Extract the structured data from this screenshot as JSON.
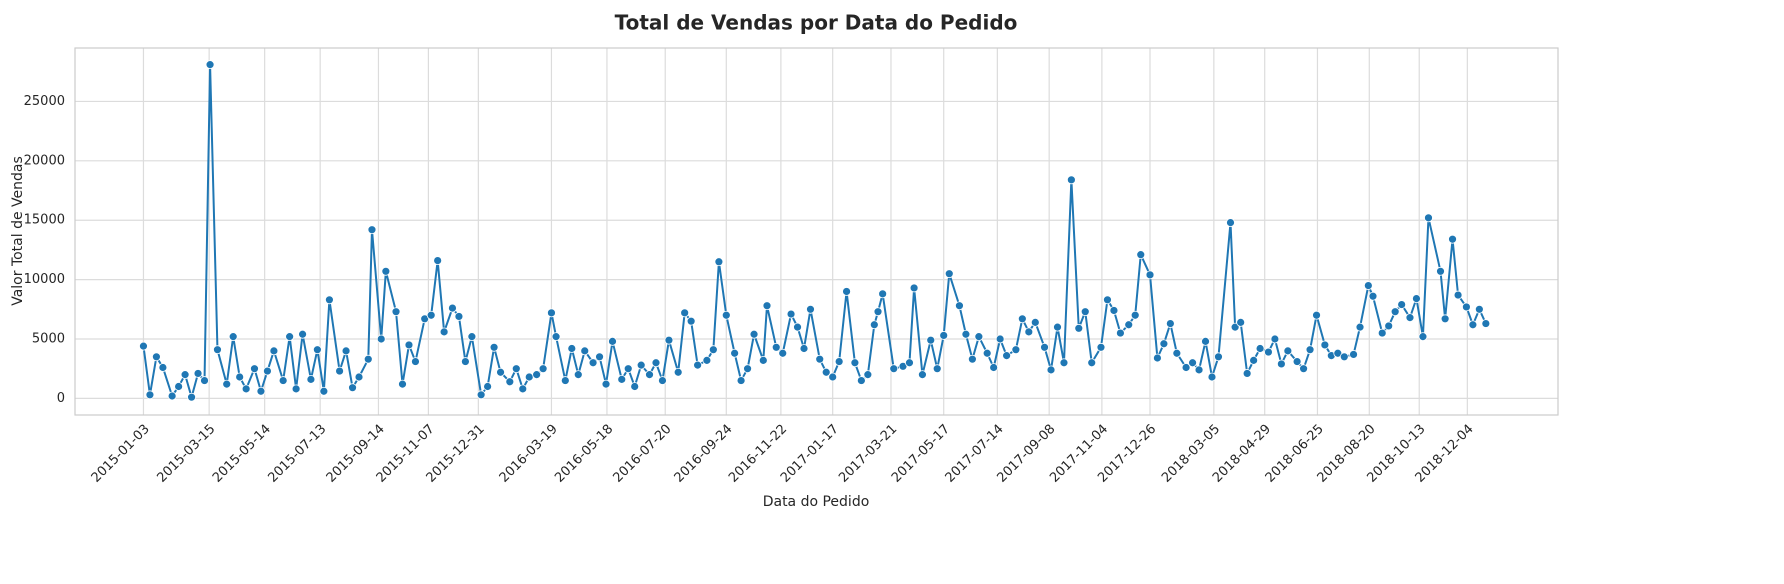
{
  "chart_data": {
    "type": "line",
    "title": "Total de Vendas por Data do Pedido",
    "x_label": "Data do Pedido",
    "y_label": "Valor Total de Vendas",
    "color": "#1f77b4",
    "grid": true,
    "x": [
      "2015-01-03",
      "2015-01-10",
      "2015-01-17",
      "2015-01-24",
      "2015-02-03",
      "2015-02-10",
      "2015-02-17",
      "2015-02-24",
      "2015-03-03",
      "2015-03-10",
      "2015-03-16",
      "2015-03-24",
      "2015-04-03",
      "2015-04-10",
      "2015-04-17",
      "2015-04-24",
      "2015-05-03",
      "2015-05-10",
      "2015-05-17",
      "2015-05-24",
      "2015-06-03",
      "2015-06-10",
      "2015-06-17",
      "2015-06-24",
      "2015-07-03",
      "2015-07-10",
      "2015-07-17",
      "2015-07-23",
      "2015-08-03",
      "2015-08-10",
      "2015-08-17",
      "2015-08-24",
      "2015-09-03",
      "2015-09-07",
      "2015-09-17",
      "2015-09-22",
      "2015-10-03",
      "2015-10-10",
      "2015-10-17",
      "2015-10-24",
      "2015-11-03",
      "2015-11-10",
      "2015-11-17",
      "2015-11-24",
      "2015-12-03",
      "2015-12-10",
      "2015-12-17",
      "2015-12-24",
      "2016-01-03",
      "2016-01-10",
      "2016-01-17",
      "2016-01-24",
      "2016-02-03",
      "2016-02-10",
      "2016-02-17",
      "2016-02-24",
      "2016-03-03",
      "2016-03-10",
      "2016-03-19",
      "2016-03-24",
      "2016-04-03",
      "2016-04-10",
      "2016-04-17",
      "2016-04-24",
      "2016-05-03",
      "2016-05-10",
      "2016-05-17",
      "2016-05-24",
      "2016-06-03",
      "2016-06-10",
      "2016-06-17",
      "2016-06-24",
      "2016-07-03",
      "2016-07-10",
      "2016-07-17",
      "2016-07-24",
      "2016-08-03",
      "2016-08-10",
      "2016-08-17",
      "2016-08-24",
      "2016-09-03",
      "2016-09-10",
      "2016-09-16",
      "2016-09-24",
      "2016-10-03",
      "2016-10-10",
      "2016-10-17",
      "2016-10-24",
      "2016-11-03",
      "2016-11-07",
      "2016-11-17",
      "2016-11-24",
      "2016-12-03",
      "2016-12-10",
      "2016-12-17",
      "2016-12-24",
      "2017-01-03",
      "2017-01-10",
      "2017-01-17",
      "2017-01-24",
      "2017-02-01",
      "2017-02-10",
      "2017-02-17",
      "2017-02-24",
      "2017-03-03",
      "2017-03-07",
      "2017-03-12",
      "2017-03-24",
      "2017-04-03",
      "2017-04-10",
      "2017-04-15",
      "2017-04-24",
      "2017-05-03",
      "2017-05-10",
      "2017-05-17",
      "2017-05-23",
      "2017-06-03",
      "2017-06-10",
      "2017-06-17",
      "2017-06-24",
      "2017-07-03",
      "2017-07-10",
      "2017-07-17",
      "2017-07-24",
      "2017-08-03",
      "2017-08-10",
      "2017-08-17",
      "2017-08-24",
      "2017-09-03",
      "2017-09-10",
      "2017-09-17",
      "2017-09-24",
      "2017-10-02",
      "2017-10-10",
      "2017-10-17",
      "2017-10-24",
      "2017-11-03",
      "2017-11-10",
      "2017-11-17",
      "2017-11-24",
      "2017-12-03",
      "2017-12-10",
      "2017-12-16",
      "2017-12-26",
      "2018-01-03",
      "2018-01-10",
      "2018-01-17",
      "2018-01-24",
      "2018-02-03",
      "2018-02-10",
      "2018-02-17",
      "2018-02-24",
      "2018-03-03",
      "2018-03-10",
      "2018-03-23",
      "2018-03-28",
      "2018-04-03",
      "2018-04-10",
      "2018-04-17",
      "2018-04-24",
      "2018-05-03",
      "2018-05-10",
      "2018-05-17",
      "2018-05-24",
      "2018-06-03",
      "2018-06-10",
      "2018-06-17",
      "2018-06-24",
      "2018-07-03",
      "2018-07-10",
      "2018-07-17",
      "2018-07-24",
      "2018-08-03",
      "2018-08-10",
      "2018-08-19",
      "2018-08-24",
      "2018-09-03",
      "2018-09-10",
      "2018-09-17",
      "2018-09-24",
      "2018-10-03",
      "2018-10-10",
      "2018-10-17",
      "2018-10-23",
      "2018-11-05",
      "2018-11-10",
      "2018-11-18",
      "2018-11-24",
      "2018-12-03",
      "2018-12-10",
      "2018-12-17",
      "2018-12-24"
    ],
    "values": [
      4400,
      300,
      3500,
      2600,
      200,
      1000,
      2000,
      100,
      2100,
      1500,
      28100,
      4100,
      1200,
      5200,
      1800,
      800,
      2500,
      600,
      2300,
      4000,
      1500,
      5200,
      800,
      5400,
      1600,
      4100,
      600,
      8300,
      2300,
      4000,
      900,
      1800,
      3300,
      14200,
      5000,
      10700,
      7300,
      1200,
      4500,
      3100,
      6700,
      7000,
      11600,
      5600,
      7600,
      6900,
      3100,
      5200,
      300,
      1000,
      4300,
      2200,
      1400,
      2500,
      800,
      1800,
      2000,
      2500,
      7200,
      5200,
      1500,
      4200,
      2000,
      4000,
      3000,
      3500,
      1200,
      4800,
      1600,
      2500,
      1000,
      2800,
      2000,
      3000,
      1500,
      4900,
      2200,
      7200,
      6500,
      2800,
      3200,
      4100,
      11500,
      7000,
      3800,
      1500,
      2500,
      5400,
      3200,
      7800,
      4300,
      3800,
      7100,
      6000,
      4200,
      7500,
      3300,
      2200,
      1800,
      3100,
      9000,
      3000,
      1500,
      2000,
      6200,
      7300,
      8800,
      2500,
      2700,
      3000,
      9300,
      2000,
      4900,
      2500,
      5300,
      10500,
      7800,
      5400,
      3300,
      5200,
      3800,
      2600,
      5000,
      3600,
      4100,
      6700,
      5600,
      6400,
      4300,
      2400,
      6000,
      3000,
      18400,
      5900,
      7300,
      3000,
      4300,
      8300,
      7400,
      5500,
      6200,
      7000,
      12100,
      10400,
      3400,
      4600,
      6300,
      3800,
      2600,
      3000,
      2400,
      4800,
      1800,
      3500,
      14800,
      6000,
      6400,
      2100,
      3200,
      4200,
      3900,
      5000,
      2900,
      4000,
      3100,
      2500,
      4100,
      7000,
      4500,
      3600,
      3800,
      3500,
      3700,
      6000,
      9500,
      8600,
      5500,
      6100,
      7300,
      7900,
      6800,
      8400,
      5200,
      15200,
      10700,
      6700,
      13400,
      8700,
      7700,
      6200,
      7500,
      6300
    ],
    "xlim": [
      "2014-10-21",
      "2019-03-12"
    ],
    "xticks": [
      "2015-01-03",
      "2015-03-15",
      "2015-05-14",
      "2015-07-13",
      "2015-09-14",
      "2015-11-07",
      "2015-12-31",
      "2016-03-19",
      "2016-05-18",
      "2016-07-20",
      "2016-09-24",
      "2016-11-22",
      "2017-01-17",
      "2017-03-21",
      "2017-05-17",
      "2017-07-14",
      "2017-09-08",
      "2017-11-04",
      "2017-12-26",
      "2018-03-05",
      "2018-04-29",
      "2018-06-25",
      "2018-08-20",
      "2018-10-13",
      "2018-12-04"
    ],
    "ylim": [
      -1400,
      29500
    ],
    "yticks": [
      0,
      5000,
      10000,
      15000,
      20000,
      25000
    ]
  }
}
